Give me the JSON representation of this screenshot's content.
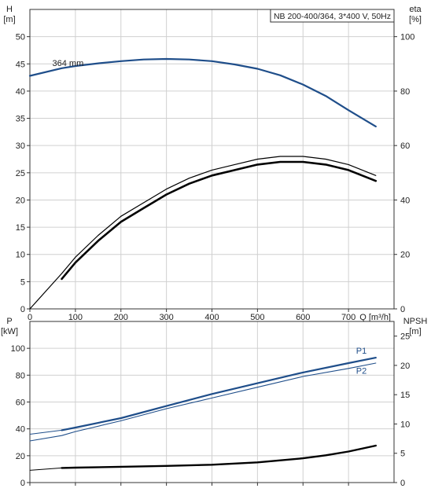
{
  "chart_data": [
    {
      "type": "line",
      "title": "NB 200-400/364, 3*400 V, 50Hz",
      "xlabel": "Q [m³/h]",
      "xlim": [
        0,
        800
      ],
      "xticks": [
        0,
        100,
        200,
        300,
        400,
        500,
        600,
        700
      ],
      "grid": true,
      "left_axis": {
        "name": "H",
        "unit": "[m]",
        "ylim": [
          0,
          55
        ],
        "ticks": [
          0,
          5,
          10,
          15,
          20,
          25,
          30,
          35,
          40,
          45,
          50
        ]
      },
      "right_axis": {
        "name": "eta",
        "unit": "[%]",
        "ylim": [
          0,
          110
        ],
        "ticks": [
          0,
          20,
          40,
          60,
          80,
          100
        ]
      },
      "series": [
        {
          "name": "364 mm",
          "axis": "left",
          "color": "#1f4e8a",
          "width": 2.2,
          "x": [
            0,
            70,
            100,
            150,
            200,
            250,
            300,
            350,
            400,
            450,
            500,
            550,
            600,
            650,
            700,
            760
          ],
          "y": [
            42.8,
            44.2,
            44.6,
            45.1,
            45.5,
            45.8,
            45.9,
            45.8,
            45.5,
            44.9,
            44.1,
            42.9,
            41.2,
            39.1,
            36.5,
            33.5
          ]
        },
        {
          "axis": "right",
          "color": "#000000",
          "width": 1.2,
          "x": [
            0,
            70,
            100,
            150,
            200,
            250,
            300,
            350,
            400,
            450,
            500,
            550,
            600,
            650,
            700,
            760
          ],
          "y": [
            0,
            13,
            19,
            27,
            34,
            39,
            44,
            48,
            51,
            53,
            55,
            56,
            56,
            55,
            53,
            49
          ]
        },
        {
          "axis": "right",
          "color": "#000000",
          "width": 2.6,
          "x": [
            70,
            100,
            150,
            200,
            250,
            300,
            350,
            400,
            450,
            500,
            550,
            600,
            650,
            700,
            760
          ],
          "y": [
            11,
            17,
            25,
            32,
            37,
            42,
            46,
            49,
            51,
            53,
            54,
            54,
            53,
            51,
            47
          ]
        }
      ]
    },
    {
      "type": "line",
      "xlim": [
        0,
        800
      ],
      "xticks": [
        0,
        100,
        200,
        300,
        400,
        500,
        600,
        700
      ],
      "grid": true,
      "left_axis": {
        "name": "P",
        "unit": "[kW]",
        "ylim": [
          0,
          120
        ],
        "ticks": [
          0,
          20,
          40,
          60,
          80,
          100
        ]
      },
      "right_axis": {
        "name": "NPSH",
        "unit": "[m]",
        "ylim": [
          0,
          27.5
        ],
        "ticks": [
          0,
          5,
          10,
          15,
          20,
          25
        ]
      },
      "series": [
        {
          "name": "P1",
          "axis": "left",
          "color": "#1f4e8a",
          "width": 2.2,
          "start_thin": true,
          "x": [
            0,
            70,
            100,
            200,
            300,
            400,
            500,
            600,
            700,
            760
          ],
          "y": [
            36,
            39,
            41,
            48,
            57,
            66,
            74,
            82,
            89,
            93
          ]
        },
        {
          "name": "P2",
          "axis": "left",
          "color": "#1f4e8a",
          "width": 1.1,
          "x": [
            0,
            70,
            100,
            200,
            300,
            400,
            500,
            600,
            700,
            760
          ],
          "y": [
            31,
            35,
            38,
            46,
            55,
            63,
            71,
            79,
            85,
            89
          ]
        },
        {
          "axis": "right",
          "color": "#000000",
          "width": 2.4,
          "start_thin": true,
          "x": [
            0,
            70,
            100,
            200,
            300,
            400,
            500,
            600,
            650,
            700,
            760
          ],
          "y": [
            2.1,
            2.5,
            2.55,
            2.7,
            2.85,
            3.05,
            3.45,
            4.15,
            4.65,
            5.3,
            6.3
          ]
        }
      ]
    }
  ]
}
